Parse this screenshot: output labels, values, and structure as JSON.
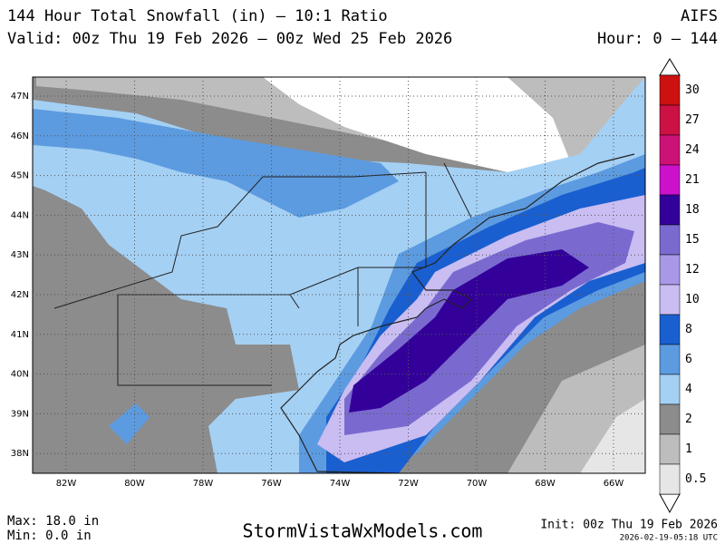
{
  "header": {
    "title": "144 Hour Total Snowfall (in) – 10:1 Ratio",
    "valid": "Valid: 00z Thu 19 Feb 2026 – 00z Wed 25 Feb 2026",
    "model": "AIFS",
    "hours": "Hour: 0 – 144"
  },
  "map": {
    "lat_labels": [
      "47N",
      "46N",
      "45N",
      "44N",
      "43N",
      "42N",
      "41N",
      "40N",
      "39N",
      "38N"
    ],
    "lon_labels": [
      "82W",
      "80W",
      "78W",
      "76W",
      "74W",
      "72W",
      "70W",
      "68W",
      "66W"
    ]
  },
  "legend": {
    "levels": [
      {
        "label": "30",
        "color": "#cc1111"
      },
      {
        "label": "27",
        "color": "#cc1144"
      },
      {
        "label": "24",
        "color": "#cc1177"
      },
      {
        "label": "21",
        "color": "#cc11cc"
      },
      {
        "label": "18",
        "color": "#33009a"
      },
      {
        "label": "15",
        "color": "#7a6ad0"
      },
      {
        "label": "12",
        "color": "#a998e6"
      },
      {
        "label": "10",
        "color": "#c9bdf2"
      },
      {
        "label": "8",
        "color": "#1a5fd0"
      },
      {
        "label": "6",
        "color": "#5c9be0"
      },
      {
        "label": "4",
        "color": "#a4d0f4"
      },
      {
        "label": "2",
        "color": "#8c8c8c"
      },
      {
        "label": "1",
        "color": "#bdbdbd"
      },
      {
        "label": "0.5",
        "color": "#e6e6e6"
      }
    ]
  },
  "footer": {
    "max": "Max: 18.0 in",
    "min": "Min: 0.0 in",
    "site": "StormVistaWxModels.com",
    "init": "Init: 00z Thu 19 Feb 2026",
    "timestamp": "2026-02-19-05:18 UTC"
  }
}
